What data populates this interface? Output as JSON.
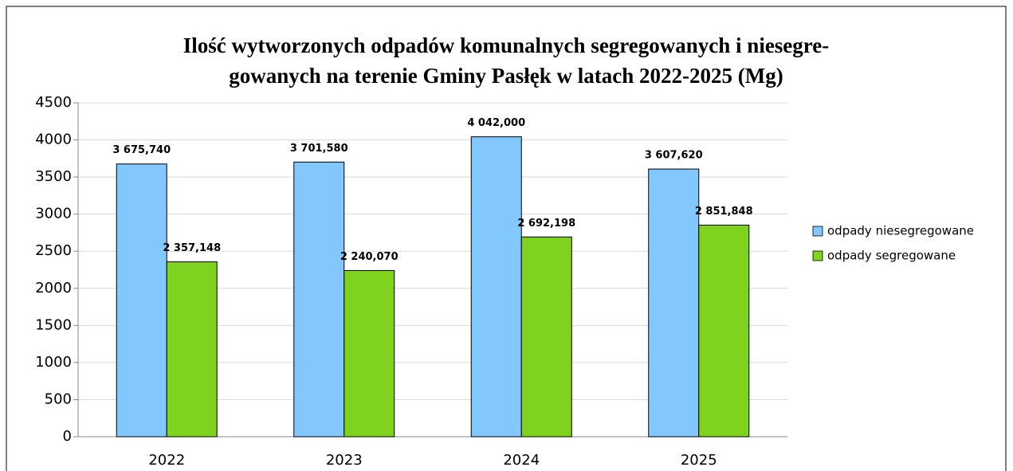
{
  "chart_data": {
    "type": "bar",
    "title": [
      "Ilość wytworzonych odpadów komunalnych segregowanych i niesegre-",
      "gowanych na terenie Gminy Pasłęk w latach 2022-2025 (Mg)"
    ],
    "categories": [
      "2022",
      "2023",
      "2024",
      "2025"
    ],
    "series": [
      {
        "name": "odpady niesegregowane",
        "color": "#82c8ff",
        "values": [
          3675.74,
          3701.58,
          4042.0,
          3607.62
        ],
        "value_labels": [
          "3 675,740",
          "3 701,580",
          "4 042,000",
          "3 607,620"
        ]
      },
      {
        "name": "odpady segregowane",
        "color": "#7fd31f",
        "values": [
          2357.148,
          2240.07,
          2692.198,
          2851.848
        ],
        "value_labels": [
          "2 357,148",
          "2 240,070",
          "2 692,198",
          "2 851,848"
        ]
      }
    ],
    "ylim": [
      0,
      4500
    ],
    "yticks": [
      0,
      500,
      1000,
      1500,
      2000,
      2500,
      3000,
      3500,
      4000,
      4500
    ],
    "grid": true,
    "legend": "right"
  }
}
